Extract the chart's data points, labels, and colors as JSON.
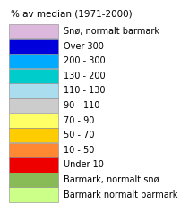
{
  "title": "% av median (1971-2000)",
  "entries": [
    {
      "label": "Snø, normalt barmark",
      "color": "#ddb8dd"
    },
    {
      "label": "Over 300",
      "color": "#0000dd"
    },
    {
      "label": "200 - 300",
      "color": "#00aaff"
    },
    {
      "label": "130 - 200",
      "color": "#00cccc"
    },
    {
      "label": "110 - 130",
      "color": "#aaddee"
    },
    {
      "label": "90 - 110",
      "color": "#cccccc"
    },
    {
      "label": "70 - 90",
      "color": "#ffff66"
    },
    {
      "label": "50 - 70",
      "color": "#ffcc00"
    },
    {
      "label": "10 - 50",
      "color": "#ff8833"
    },
    {
      "label": "Under 10",
      "color": "#ee0000"
    },
    {
      "label": "Barmark, normalt snø",
      "color": "#88bb55"
    },
    {
      "label": "Barmark normalt barmark",
      "color": "#ccff88"
    }
  ],
  "bg_color": "#ffffff",
  "title_fontsize": 7.5,
  "label_fontsize": 7.0,
  "figwidth": 2.11,
  "figheight": 2.27,
  "dpi": 100
}
